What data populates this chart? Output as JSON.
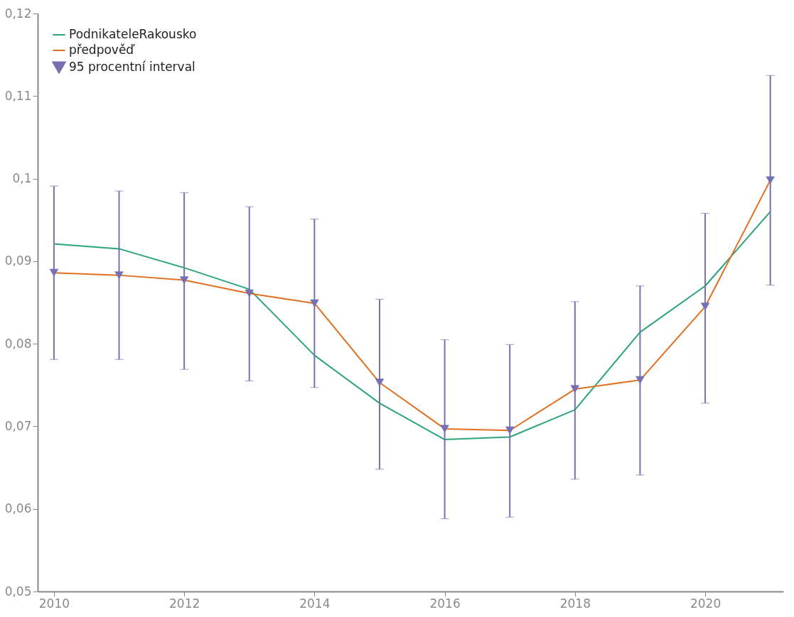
{
  "chart_data": {
    "type": "line",
    "x": [
      2010,
      2011,
      2012,
      2013,
      2014,
      2015,
      2016,
      2017,
      2018,
      2019,
      2020,
      2021
    ],
    "series": [
      {
        "name": "PodnikateleRakousko",
        "color": "#2aa37f",
        "values": [
          0.0921,
          0.0915,
          0.0892,
          0.0866,
          0.0786,
          0.0728,
          0.0684,
          0.0687,
          0.072,
          0.0814,
          0.087,
          0.096
        ]
      },
      {
        "name": "předpověď",
        "color": "#e0701f",
        "values": [
          0.0886,
          0.0883,
          0.0877,
          0.0861,
          0.0849,
          0.0753,
          0.0697,
          0.0695,
          0.0745,
          0.0756,
          0.0845,
          0.0998
        ]
      },
      {
        "name": "95 procentní interval",
        "type": "scatter",
        "marker": "triangle",
        "color": "#7570b3",
        "values": [
          0.0886,
          0.0883,
          0.0877,
          0.0861,
          0.0849,
          0.0753,
          0.0697,
          0.0695,
          0.0745,
          0.0756,
          0.0845,
          0.0998
        ],
        "errors": [
          [
            0.0781,
            0.0991
          ],
          [
            0.0781,
            0.0985
          ],
          [
            0.0769,
            0.0983
          ],
          [
            0.0755,
            0.0966
          ],
          [
            0.0747,
            0.0951
          ],
          [
            0.0648,
            0.0854
          ],
          [
            0.0588,
            0.0805
          ],
          [
            0.059,
            0.0799
          ],
          [
            0.0636,
            0.0851
          ],
          [
            0.0641,
            0.087
          ],
          [
            0.0728,
            0.0958
          ],
          [
            0.0871,
            0.1125
          ]
        ]
      }
    ],
    "xlim": [
      2009.75,
      2021.2
    ],
    "xticks": [
      2010,
      2012,
      2014,
      2016,
      2018,
      2020
    ],
    "ylim": [
      0.05,
      0.12
    ],
    "yticks": [
      {
        "value": 0.05,
        "label": "0,05"
      },
      {
        "value": 0.06,
        "label": "0,06"
      },
      {
        "value": 0.07,
        "label": "0,07"
      },
      {
        "value": 0.08,
        "label": "0,08"
      },
      {
        "value": 0.09,
        "label": "0,09"
      },
      {
        "value": 0.1,
        "label": "0,1"
      },
      {
        "value": 0.11,
        "label": "0,11"
      },
      {
        "value": 0.12,
        "label": "0,12"
      }
    ],
    "grid": false,
    "legend": "top left"
  }
}
